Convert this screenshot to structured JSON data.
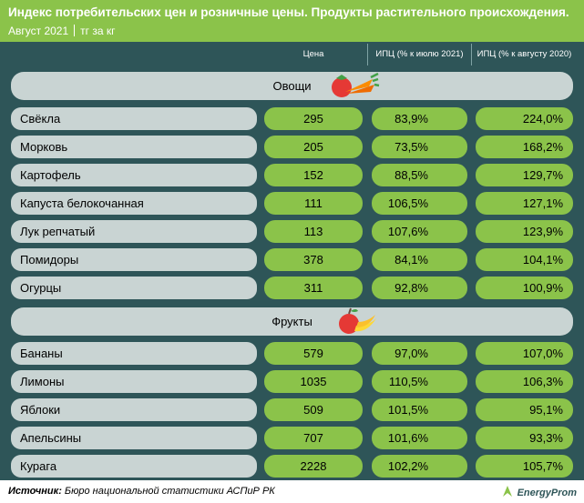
{
  "header": {
    "title": "Индекс потребительских цен и розничные цены. Продукты растительного происхождения.",
    "period": "Август 2021",
    "unit": "тг за кг"
  },
  "columns": {
    "price": "Цена",
    "cpi_month": "ИПЦ (% к июлю 2021)",
    "cpi_year": "ИПЦ (% к августу 2020)"
  },
  "sections": {
    "vegetables": {
      "label": "Овощи",
      "icon": "vegetables-icon"
    },
    "fruits": {
      "label": "Фрукты",
      "icon": "fruits-icon"
    }
  },
  "chart_data": {
    "type": "table",
    "title": "Индекс потребительских цен и розничные цены. Продукты растительного происхождения.",
    "columns": [
      "Цена",
      "ИПЦ (% к июлю 2021)",
      "ИПЦ (% к августу 2020)"
    ],
    "vegetables": [
      {
        "name": "Свёкла",
        "price": "295",
        "cpi_month": "83,9%",
        "cpi_year": "224,0%"
      },
      {
        "name": "Морковь",
        "price": "205",
        "cpi_month": "73,5%",
        "cpi_year": "168,2%"
      },
      {
        "name": "Картофель",
        "price": "152",
        "cpi_month": "88,5%",
        "cpi_year": "129,7%"
      },
      {
        "name": "Капуста белокочанная",
        "price": "111",
        "cpi_month": "106,5%",
        "cpi_year": "127,1%"
      },
      {
        "name": "Лук репчатый",
        "price": "113",
        "cpi_month": "107,6%",
        "cpi_year": "123,9%"
      },
      {
        "name": "Помидоры",
        "price": "378",
        "cpi_month": "84,1%",
        "cpi_year": "104,1%"
      },
      {
        "name": "Огурцы",
        "price": "311",
        "cpi_month": "92,8%",
        "cpi_year": "100,9%"
      }
    ],
    "fruits": [
      {
        "name": "Бананы",
        "price": "579",
        "cpi_month": "97,0%",
        "cpi_year": "107,0%"
      },
      {
        "name": "Лимоны",
        "price": "1035",
        "cpi_month": "110,5%",
        "cpi_year": "106,3%"
      },
      {
        "name": "Яблоки",
        "price": "509",
        "cpi_month": "101,5%",
        "cpi_year": "95,1%"
      },
      {
        "name": "Апельсины",
        "price": "707",
        "cpi_month": "101,6%",
        "cpi_year": "93,3%"
      },
      {
        "name": "Курага",
        "price": "2228",
        "cpi_month": "102,2%",
        "cpi_year": "105,7%"
      }
    ]
  },
  "footer": {
    "source_label": "Источник:",
    "source_text": "Бюро национальной статистики АСПиР РК",
    "logo_text": "EnergyProm"
  },
  "colors": {
    "header_green": "#8bc34a",
    "panel_dark": "#2e5558",
    "row_grey": "#c9d4d3",
    "pill_green": "#8bc34a"
  }
}
